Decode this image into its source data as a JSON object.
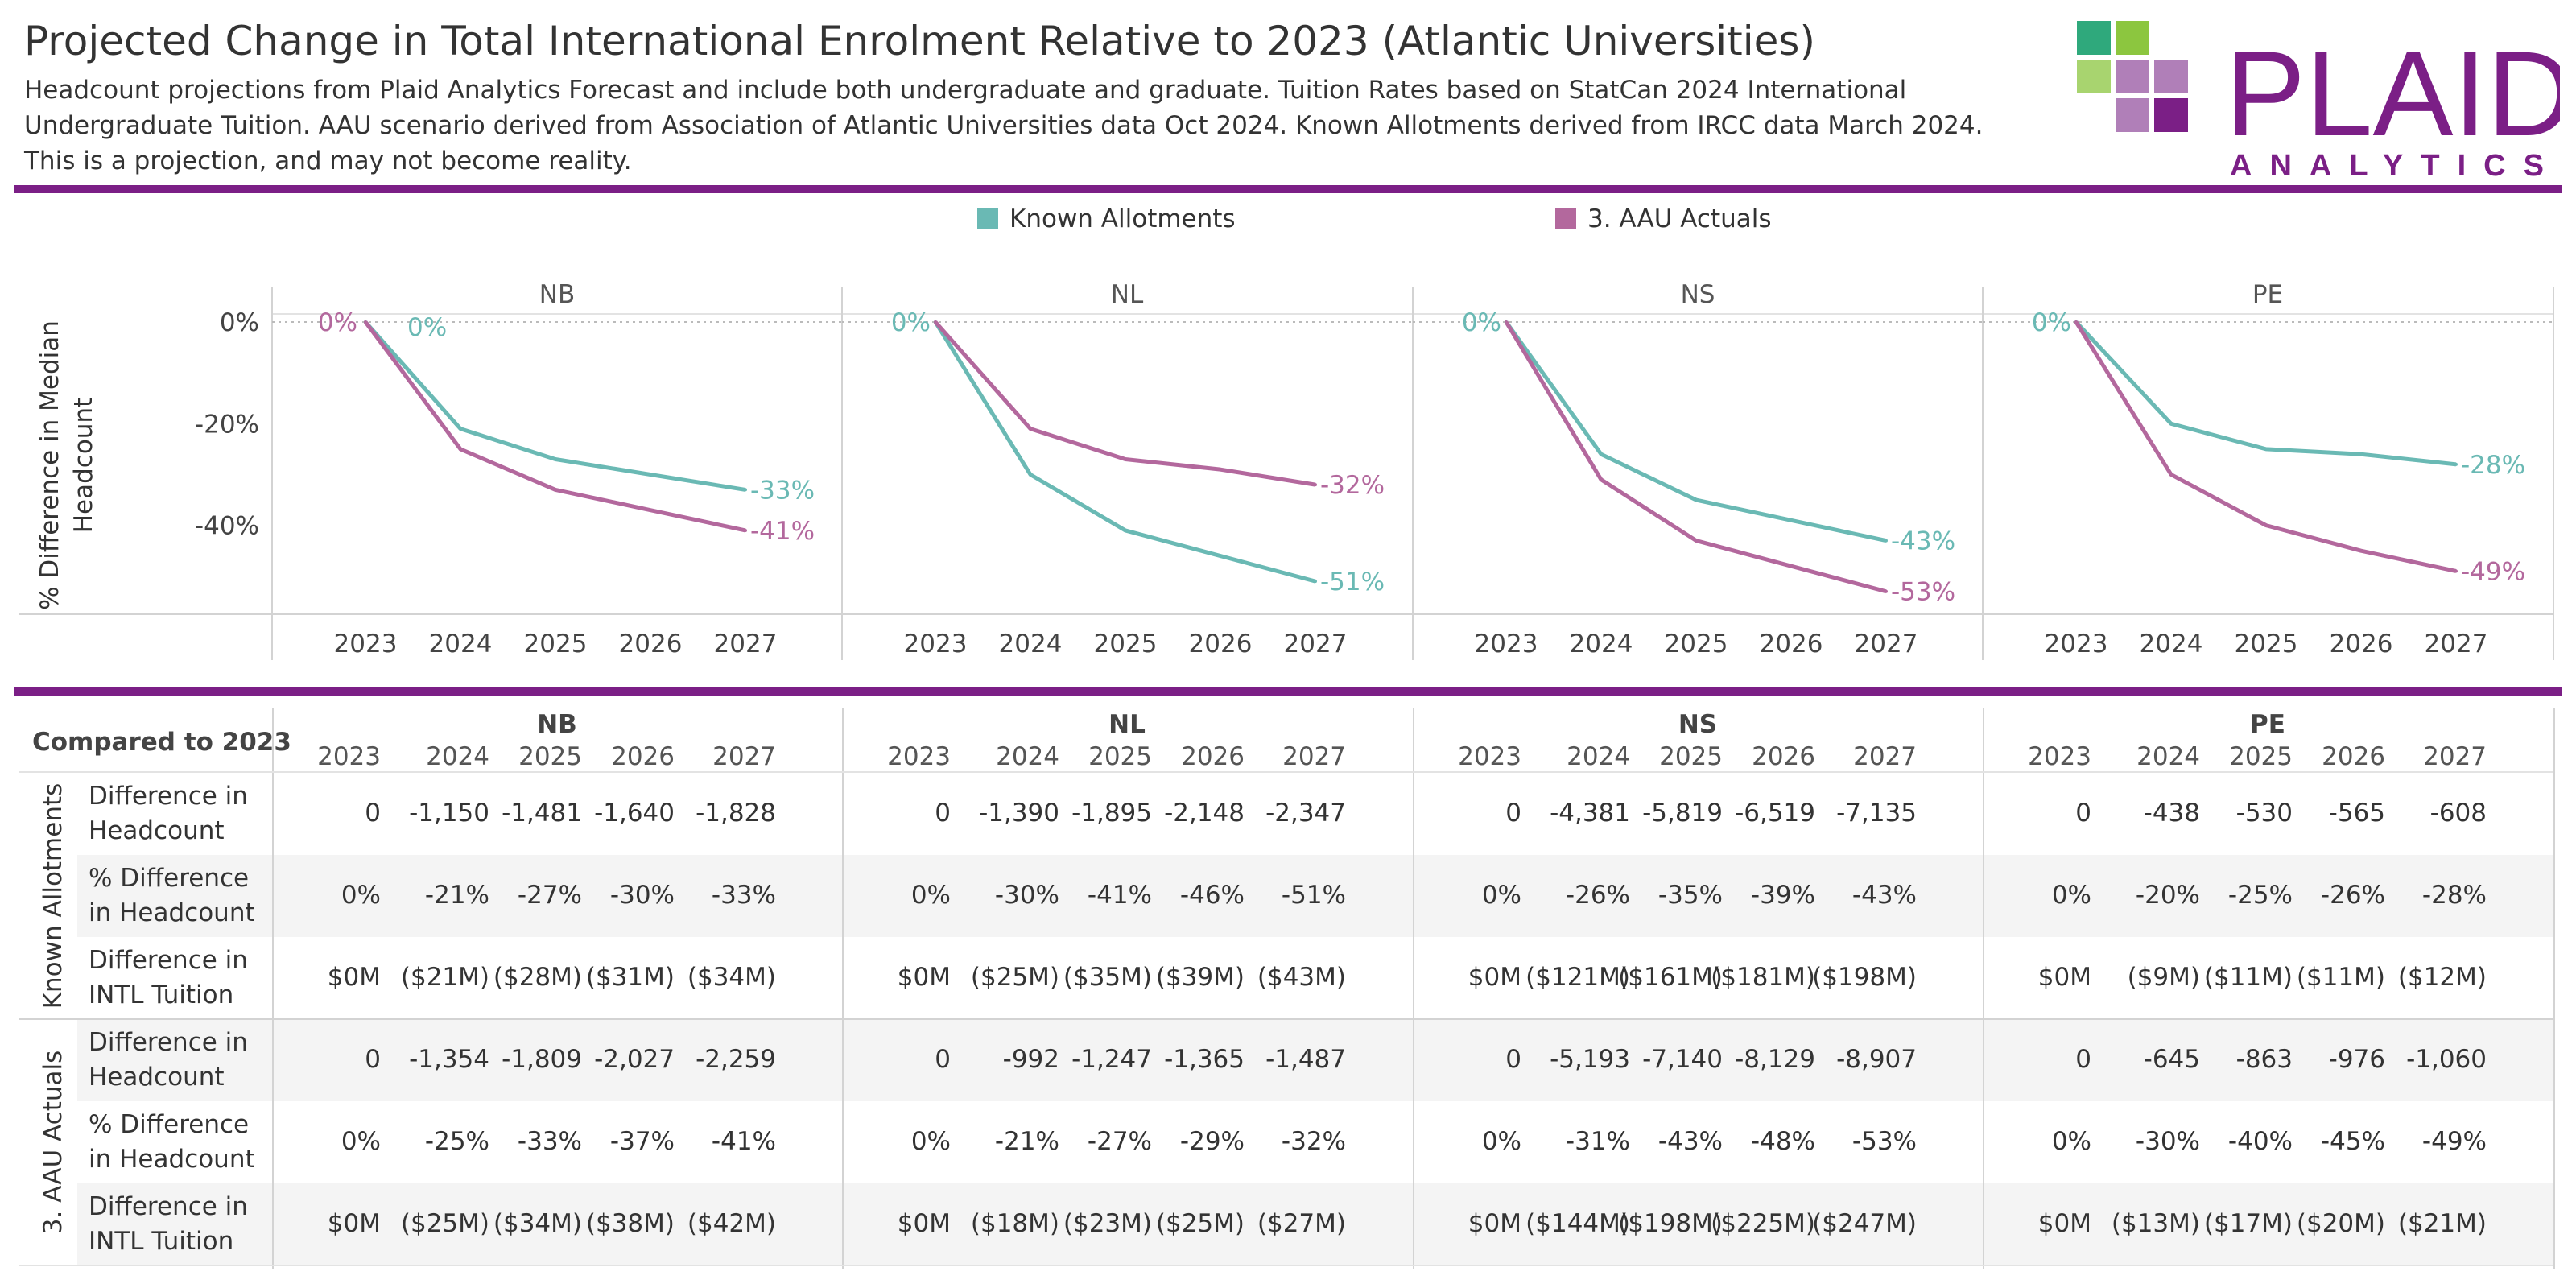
{
  "header": {
    "title": "Projected Change in Total International Enrolment Relative to 2023 (Atlantic Universities)",
    "subtitle_lines": [
      "Headcount projections from Plaid Analytics Forecast and include both undergraduate and graduate. Tuition Rates based on StatCan 2024 International",
      "Undergraduate Tuition. AAU scenario derived from Association of Atlantic Universities data Oct 2024. Known Allotments derived from IRCC data March 2024.",
      "This is a projection, and may not become reality."
    ]
  },
  "logo": {
    "word": "PLAID",
    "sub": "ANALYTICS"
  },
  "colors": {
    "known": "#6ab9b4",
    "aau": "#b3689d",
    "accent": "#7b1f86"
  },
  "legend": [
    {
      "label": "Known Allotments",
      "color": "#6ab9b4"
    },
    {
      "label": "3. AAU Actuals",
      "color": "#b3689d"
    }
  ],
  "chart_data": {
    "type": "line",
    "title": "Projected Change in Total International Enrolment Relative to 2023 (Atlantic Universities)",
    "ylabel": "% Difference in Median Headcount",
    "ylim": [
      -57,
      0
    ],
    "y_ticks": [
      "0%",
      "-20%",
      "-40%"
    ],
    "y_tick_values": [
      0,
      -20,
      -40
    ],
    "x": [
      "2023",
      "2024",
      "2025",
      "2026",
      "2027"
    ],
    "panels": [
      {
        "province": "NB",
        "series": [
          {
            "name": "Known Allotments",
            "values": [
              0,
              -21,
              -27,
              -30,
              -33
            ],
            "start_label": "0%",
            "end_label": "-33%"
          },
          {
            "name": "3. AAU Actuals",
            "values": [
              0,
              -25,
              -33,
              -37,
              -41
            ],
            "start_label": "0%",
            "end_label": "-41%"
          }
        ]
      },
      {
        "province": "NL",
        "series": [
          {
            "name": "Known Allotments",
            "values": [
              0,
              -30,
              -41,
              -46,
              -51
            ],
            "start_label": "0%",
            "end_label": "-51%"
          },
          {
            "name": "3. AAU Actuals",
            "values": [
              0,
              -21,
              -27,
              -29,
              -32
            ],
            "start_label": "",
            "end_label": "-32%"
          }
        ]
      },
      {
        "province": "NS",
        "series": [
          {
            "name": "Known Allotments",
            "values": [
              0,
              -26,
              -35,
              -39,
              -43
            ],
            "start_label": "0%",
            "end_label": "-43%"
          },
          {
            "name": "3. AAU Actuals",
            "values": [
              0,
              -31,
              -43,
              -48,
              -53
            ],
            "start_label": "",
            "end_label": "-53%"
          }
        ]
      },
      {
        "province": "PE",
        "series": [
          {
            "name": "Known Allotments",
            "values": [
              0,
              -20,
              -25,
              -26,
              -28
            ],
            "start_label": "0%",
            "end_label": "-28%"
          },
          {
            "name": "3. AAU Actuals",
            "values": [
              0,
              -30,
              -40,
              -45,
              -49
            ],
            "start_label": "",
            "end_label": "-49%"
          }
        ]
      }
    ]
  },
  "table": {
    "corner": "Compared to 2023",
    "provinces": [
      "NB",
      "NL",
      "NS",
      "PE"
    ],
    "years": [
      "2023",
      "2024",
      "2025",
      "2026",
      "2027"
    ],
    "groups": [
      {
        "name": "Known Allotments",
        "rows": [
          {
            "label": "Difference in Headcount",
            "values": [
              [
                "0",
                "-1,150",
                "-1,481",
                "-1,640",
                "-1,828"
              ],
              [
                "0",
                "-1,390",
                "-1,895",
                "-2,148",
                "-2,347"
              ],
              [
                "0",
                "-4,381",
                "-5,819",
                "-6,519",
                "-7,135"
              ],
              [
                "0",
                "-438",
                "-530",
                "-565",
                "-608"
              ]
            ]
          },
          {
            "label": "% Difference in Headcount",
            "values": [
              [
                "0%",
                "-21%",
                "-27%",
                "-30%",
                "-33%"
              ],
              [
                "0%",
                "-30%",
                "-41%",
                "-46%",
                "-51%"
              ],
              [
                "0%",
                "-26%",
                "-35%",
                "-39%",
                "-43%"
              ],
              [
                "0%",
                "-20%",
                "-25%",
                "-26%",
                "-28%"
              ]
            ]
          },
          {
            "label": "Difference in INTL Tuition",
            "values": [
              [
                "$0M",
                "($21M)",
                "($28M)",
                "($31M)",
                "($34M)"
              ],
              [
                "$0M",
                "($25M)",
                "($35M)",
                "($39M)",
                "($43M)"
              ],
              [
                "$0M",
                "($121M)",
                "($161M)",
                "($181M)",
                "($198M)"
              ],
              [
                "$0M",
                "($9M)",
                "($11M)",
                "($11M)",
                "($12M)"
              ]
            ]
          }
        ]
      },
      {
        "name": "3. AAU Actuals",
        "rows": [
          {
            "label": "Difference in Headcount",
            "values": [
              [
                "0",
                "-1,354",
                "-1,809",
                "-2,027",
                "-2,259"
              ],
              [
                "0",
                "-992",
                "-1,247",
                "-1,365",
                "-1,487"
              ],
              [
                "0",
                "-5,193",
                "-7,140",
                "-8,129",
                "-8,907"
              ],
              [
                "0",
                "-645",
                "-863",
                "-976",
                "-1,060"
              ]
            ]
          },
          {
            "label": "% Difference in Headcount",
            "values": [
              [
                "0%",
                "-25%",
                "-33%",
                "-37%",
                "-41%"
              ],
              [
                "0%",
                "-21%",
                "-27%",
                "-29%",
                "-32%"
              ],
              [
                "0%",
                "-31%",
                "-43%",
                "-48%",
                "-53%"
              ],
              [
                "0%",
                "-30%",
                "-40%",
                "-45%",
                "-49%"
              ]
            ]
          },
          {
            "label": "Difference in INTL Tuition",
            "values": [
              [
                "$0M",
                "($25M)",
                "($34M)",
                "($38M)",
                "($42M)"
              ],
              [
                "$0M",
                "($18M)",
                "($23M)",
                "($25M)",
                "($27M)"
              ],
              [
                "$0M",
                "($144M)",
                "($198M)",
                "($225M)",
                "($247M)"
              ],
              [
                "$0M",
                "($13M)",
                "($17M)",
                "($20M)",
                "($21M)"
              ]
            ]
          }
        ]
      }
    ]
  }
}
